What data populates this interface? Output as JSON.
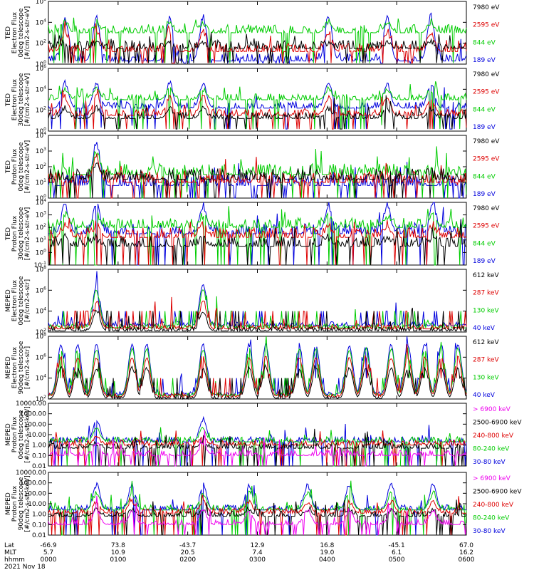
{
  "chart_data": [
    {
      "type": "line",
      "ylabel": [
        "TED",
        "Electron Flux",
        "0deg telescope",
        "[#/cm2-s-str-eV]"
      ],
      "yscale": "log",
      "ylim": [
        1,
        1000000
      ],
      "yticks": [
        {
          "v": 1,
          "label": "10",
          "exp": "0"
        },
        {
          "v": 100,
          "label": "10",
          "exp": "2"
        },
        {
          "v": 10000,
          "label": "10",
          "exp": "4"
        },
        {
          "v": 1000000,
          "label": "10",
          "exp": "6"
        }
      ],
      "legend": [
        {
          "text": "7980 eV",
          "color": "#000000"
        },
        {
          "text": "2595 eV",
          "color": "#dd0000"
        },
        {
          "text": "844 eV",
          "color": "#00cc00"
        },
        {
          "text": "189 eV",
          "color": "#0000dd"
        }
      ],
      "profile": {
        "base": [
          [
            0.3,
            3
          ],
          [
            1.2,
            1.5
          ]
        ],
        "peaks": [
          0.04,
          0.115,
          0.29,
          0.37,
          0.67,
          0.81,
          0.915
        ],
        "peakTop": [
          4.5,
          4.0,
          3.2,
          2.0
        ],
        "noise": 0.8,
        "floor": 0.1
      }
    },
    {
      "type": "line",
      "ylabel": [
        "TED",
        "Electron Flux",
        "30deg telescope",
        "[#/cm2-s-str-eV]"
      ],
      "yscale": "log",
      "ylim": [
        1,
        1000000
      ],
      "yticks": [
        {
          "v": 1,
          "label": "10",
          "exp": "0"
        },
        {
          "v": 100,
          "label": "10",
          "exp": "2"
        },
        {
          "v": 10000,
          "label": "10",
          "exp": "4"
        },
        {
          "v": 1000000,
          "label": "10",
          "exp": "6"
        }
      ],
      "legend": [
        {
          "text": "7980 eV",
          "color": "#000000"
        },
        {
          "text": "2595 eV",
          "color": "#dd0000"
        },
        {
          "text": "844 eV",
          "color": "#00cc00"
        },
        {
          "text": "189 eV",
          "color": "#0000dd"
        }
      ],
      "profile": {
        "base": [
          [
            2.2,
            3
          ],
          [
            1.5,
            1.2
          ]
        ],
        "peaks": [
          0.04,
          0.115,
          0.29,
          0.37,
          0.67,
          0.81,
          0.915
        ],
        "peakTop": [
          4.6,
          4.0,
          3.3,
          2.2
        ],
        "noise": 0.6,
        "floor": 0.2
      }
    },
    {
      "type": "line",
      "ylabel": [
        "TED",
        "Proton Flux",
        "0deg telescope",
        "[#/cm2-s-str-eV]"
      ],
      "yscale": "log",
      "ylim": [
        1,
        10000
      ],
      "yticks": [
        {
          "v": 1,
          "label": "10",
          "exp": "0"
        },
        {
          "v": 10,
          "label": "10",
          "exp": "1"
        },
        {
          "v": 100,
          "label": "10",
          "exp": "2"
        },
        {
          "v": 1000,
          "label": "10",
          "exp": "3"
        },
        {
          "v": 10000,
          "label": "10",
          "exp": "4"
        }
      ],
      "legend": [
        {
          "text": "7980 eV",
          "color": "#000000"
        },
        {
          "text": "2595 eV",
          "color": "#dd0000"
        },
        {
          "text": "844 eV",
          "color": "#00cc00"
        },
        {
          "text": "189 eV",
          "color": "#0000dd"
        }
      ],
      "profile": {
        "base": [
          [
            0.8,
            1.5
          ],
          [
            1.0,
            1.2
          ]
        ],
        "peaks": [
          0.115
        ],
        "peakTop": [
          3.5,
          3.0,
          2.6,
          2.2
        ],
        "noise": 0.7,
        "floor": 0.0
      }
    },
    {
      "type": "line",
      "ylabel": [
        "TED",
        "Proton Flux",
        "30deg telescope",
        "[#/cm2-s-str-eV]"
      ],
      "yscale": "log",
      "ylim": [
        0.1,
        10000
      ],
      "yticks": [
        {
          "v": 0.1,
          "label": "10",
          "exp": "-1"
        },
        {
          "v": 1,
          "label": "10",
          "exp": "0"
        },
        {
          "v": 10,
          "label": "10",
          "exp": "1"
        },
        {
          "v": 100,
          "label": "10",
          "exp": "2"
        },
        {
          "v": 1000,
          "label": "10",
          "exp": "3"
        },
        {
          "v": 10000,
          "label": "10",
          "exp": "4"
        }
      ],
      "legend": [
        {
          "text": "7980 eV",
          "color": "#000000"
        },
        {
          "text": "2595 eV",
          "color": "#dd0000"
        },
        {
          "text": "844 eV",
          "color": "#00cc00"
        },
        {
          "text": "189 eV",
          "color": "#0000dd"
        }
      ],
      "profile": {
        "base": [
          [
            1.5,
            2.0
          ],
          [
            1.2,
            0.5
          ]
        ],
        "peaks": [
          0.04,
          0.115,
          0.37,
          0.67,
          0.81,
          0.92
        ],
        "peakTop": [
          3.8,
          3.0,
          2.2,
          1.2
        ],
        "noise": 0.8,
        "floor": 0.0
      }
    },
    {
      "type": "line",
      "ylabel": [
        "MEPED",
        "Electron Flux",
        "0deg telescope",
        "[#/cm2-s-str]"
      ],
      "yscale": "log",
      "ylim": [
        100,
        100000000
      ],
      "yticks": [
        {
          "v": 100,
          "label": "10",
          "exp": "2"
        },
        {
          "v": 10000,
          "label": "10",
          "exp": "4"
        },
        {
          "v": 1000000,
          "label": "10",
          "exp": "6"
        },
        {
          "v": 100000000,
          "label": "10",
          "exp": "8"
        }
      ],
      "legend": [
        {
          "text": "612 keV",
          "color": "#000000"
        },
        {
          "text": "287 keV",
          "color": "#dd0000"
        },
        {
          "text": "130 keV",
          "color": "#00cc00"
        },
        {
          "text": "40 keV",
          "color": "#0000dd"
        }
      ],
      "profile": {
        "base": [
          [
            2.6,
            2.4
          ],
          [
            2.3,
            2.1
          ]
        ],
        "peaks": [
          0.115,
          0.37
        ],
        "peakTop": [
          6.5,
          6.0,
          5.0,
          4.0
        ],
        "noise": 0.4,
        "floor": 2.0
      }
    },
    {
      "type": "line",
      "ylabel": [
        "MEPED",
        "Electron Flux",
        "90deg telescope",
        "[#/cm2-s-str]"
      ],
      "yscale": "log",
      "ylim": [
        100,
        100000000
      ],
      "yticks": [
        {
          "v": 100,
          "label": "10",
          "exp": "2"
        },
        {
          "v": 10000,
          "label": "10",
          "exp": "4"
        },
        {
          "v": 1000000,
          "label": "10",
          "exp": "6"
        },
        {
          "v": 100000000,
          "label": "10",
          "exp": "8"
        }
      ],
      "legend": [
        {
          "text": "612 keV",
          "color": "#000000"
        },
        {
          "text": "287 keV",
          "color": "#dd0000"
        },
        {
          "text": "130 keV",
          "color": "#00cc00"
        },
        {
          "text": "40 keV",
          "color": "#0000dd"
        }
      ],
      "profile": {
        "base": [
          [
            2.4,
            2.3
          ],
          [
            2.2,
            2.0
          ]
        ],
        "peaks": [
          0.03,
          0.07,
          0.115,
          0.2,
          0.235,
          0.37,
          0.48,
          0.52,
          0.6,
          0.64,
          0.72,
          0.76,
          0.82,
          0.86,
          0.9,
          0.94,
          0.98
        ],
        "peakTop": [
          7.2,
          6.8,
          6.0,
          5.0
        ],
        "noise": 0.3,
        "floor": 2.0
      }
    },
    {
      "type": "line",
      "ylabel": [
        "MEPED",
        "Proton Flux",
        "0deg telescope",
        "[#/cm2-s-str-keV]"
      ],
      "yscale": "log",
      "ylim": [
        0.01,
        10000
      ],
      "yticks": [
        {
          "v": 0.01,
          "label": "0.01"
        },
        {
          "v": 0.1,
          "label": "0.10"
        },
        {
          "v": 1,
          "label": "1.00"
        },
        {
          "v": 10,
          "label": "10.00"
        },
        {
          "v": 100,
          "label": "100.00"
        },
        {
          "v": 1000,
          "label": "1000.00"
        },
        {
          "v": 10000,
          "label": "10000.00"
        }
      ],
      "legend": [
        {
          "text": "> 6900 keV",
          "color": "#ee00ee"
        },
        {
          "text": "2500-6900 keV",
          "color": "#000000"
        },
        {
          "text": "240-800 keV",
          "color": "#dd0000"
        },
        {
          "text": "80-240 keV",
          "color": "#00cc00"
        },
        {
          "text": "30-80 keV",
          "color": "#0000dd"
        }
      ],
      "profile": {
        "base": [
          [
            0.3,
            0.0
          ],
          [
            -0.3,
            -1.0
          ]
        ],
        "peaks": [
          0.115,
          0.37
        ],
        "peakTop": [
          2.5,
          1.6,
          0.8,
          0.2
        ],
        "noise": 0.5,
        "floor": -1.2
      }
    },
    {
      "type": "line",
      "ylabel": [
        "MEPED",
        "Proton Flux",
        "90deg telescope",
        "[#/cm2-s-str-keV]"
      ],
      "yscale": "log",
      "ylim": [
        0.01,
        10000
      ],
      "yticks": [
        {
          "v": 0.01,
          "label": "0.01"
        },
        {
          "v": 0.1,
          "label": "0.10"
        },
        {
          "v": 1,
          "label": "1.00"
        },
        {
          "v": 10,
          "label": "10.00"
        },
        {
          "v": 100,
          "label": "100.00"
        },
        {
          "v": 1000,
          "label": "1000.00"
        },
        {
          "v": 10000,
          "label": "10000.00"
        }
      ],
      "legend": [
        {
          "text": "> 6900 keV",
          "color": "#ee00ee"
        },
        {
          "text": "2500-6900 keV",
          "color": "#000000"
        },
        {
          "text": "240-800 keV",
          "color": "#dd0000"
        },
        {
          "text": "80-240 keV",
          "color": "#00cc00"
        },
        {
          "text": "30-80 keV",
          "color": "#0000dd"
        }
      ],
      "profile": {
        "base": [
          [
            0.4,
            0.1
          ],
          [
            -0.2,
            -1.0
          ]
        ],
        "peaks": [
          0.115,
          0.2,
          0.37,
          0.48,
          0.62,
          0.72,
          0.82,
          0.92
        ],
        "peakTop": [
          2.8,
          2.0,
          1.2,
          0.4
        ],
        "noise": 0.5,
        "floor": -1.2
      }
    }
  ],
  "x_axis": {
    "row_labels": [
      "Lat",
      "MLT",
      "hhmm"
    ],
    "ticks": [
      {
        "frac": 0.0,
        "lat": "-66.9",
        "mlt": "5.7",
        "hhmm": "0000"
      },
      {
        "frac": 0.1667,
        "lat": "73.8",
        "mlt": "10.9",
        "hhmm": "0100"
      },
      {
        "frac": 0.3333,
        "lat": "-43.7",
        "mlt": "20.5",
        "hhmm": "0200"
      },
      {
        "frac": 0.5,
        "lat": "12.9",
        "mlt": "7.4",
        "hhmm": "0300"
      },
      {
        "frac": 0.6667,
        "lat": "16.8",
        "mlt": "19.0",
        "hhmm": "0400"
      },
      {
        "frac": 0.8333,
        "lat": "-45.1",
        "mlt": "6.1",
        "hhmm": "0500"
      },
      {
        "frac": 1.0,
        "lat": "67.0",
        "mlt": "16.2",
        "hhmm": "0600"
      }
    ],
    "date": "2021 Nov 18"
  }
}
